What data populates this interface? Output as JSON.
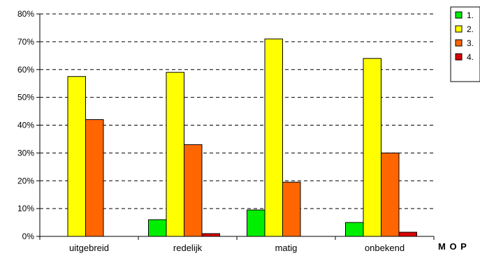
{
  "chart_data": {
    "type": "bar",
    "title": "",
    "xlabel": "",
    "ylabel": "",
    "categories": [
      "uitgebreid",
      "redelijk",
      "matig",
      "onbekend"
    ],
    "series": [
      {
        "name": "1.",
        "color": "#00ee00",
        "values": [
          0,
          6,
          9.5,
          5
        ]
      },
      {
        "name": "2.",
        "color": "#ffff00",
        "values": [
          57.5,
          59,
          71,
          64
        ]
      },
      {
        "name": "3.",
        "color": "#ff6600",
        "values": [
          42,
          33,
          19.5,
          30
        ]
      },
      {
        "name": "4.",
        "color": "#dd0000",
        "values": [
          0,
          1,
          0,
          1.5
        ]
      }
    ],
    "ylim": [
      0,
      80
    ],
    "yticks": [
      "0%",
      "10%",
      "20%",
      "30%",
      "40%",
      "50%",
      "60%",
      "70%",
      "80%"
    ],
    "grid": "dashed horizontal",
    "legend": "top-right"
  },
  "corner_label": "M O P"
}
